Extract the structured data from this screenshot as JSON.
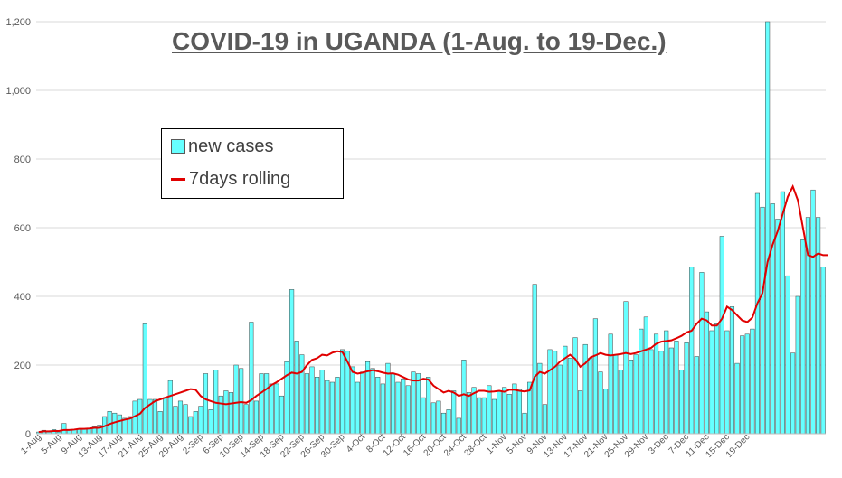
{
  "chart_data": {
    "type": "bar",
    "title": "COVID-19 in UGANDA (1-Aug. to 19-Dec.)",
    "ylim": [
      0,
      1200
    ],
    "yticks": [
      "0",
      "200",
      "400",
      "600",
      "800",
      "1,000",
      "1,200"
    ],
    "ytick_values": [
      0,
      200,
      400,
      600,
      800,
      1000,
      1200
    ],
    "xtick_labels": [
      "1-Aug",
      "5-Aug",
      "9-Aug",
      "13-Aug",
      "17-Aug",
      "21-Aug",
      "25-Aug",
      "29-Aug",
      "2-Sep",
      "6-Sep",
      "10-Sep",
      "14-Sep",
      "18-Sep",
      "22-Sep",
      "26-Sep",
      "30-Sep",
      "4-Oct",
      "8-Oct",
      "12-Oct",
      "16-Oct",
      "20-Oct",
      "24-Oct",
      "28-Oct",
      "1-Nov",
      "5-Nov",
      "9-Nov",
      "13-Nov",
      "17-Nov",
      "21-Nov",
      "25-Nov",
      "29-Nov",
      "3-Dec",
      "7-Dec",
      "11-Dec",
      "15-Dec",
      "19-Dec"
    ],
    "grid": true,
    "legend_position": "upper-left",
    "series": [
      {
        "name": "new cases",
        "type": "bar",
        "color": "#66ffff",
        "values": [
          5,
          10,
          5,
          12,
          5,
          30,
          10,
          12,
          15,
          15,
          15,
          20,
          25,
          50,
          65,
          60,
          55,
          45,
          50,
          95,
          100,
          320,
          100,
          100,
          65,
          105,
          155,
          80,
          95,
          85,
          50,
          65,
          80,
          175,
          70,
          185,
          110,
          125,
          120,
          200,
          190,
          85,
          325,
          95,
          175,
          175,
          145,
          145,
          110,
          210,
          420,
          270,
          230,
          175,
          195,
          165,
          185,
          155,
          150,
          165,
          245,
          240,
          195,
          150,
          180,
          210,
          190,
          165,
          145,
          205,
          175,
          150,
          160,
          140,
          180,
          175,
          105,
          165,
          90,
          95,
          60,
          70,
          125,
          45,
          215,
          120,
          135,
          105,
          105,
          140,
          100,
          125,
          135,
          115,
          145,
          130,
          60,
          150,
          435,
          205,
          85,
          245,
          240,
          200,
          255,
          220,
          280,
          125,
          260,
          220,
          335,
          180,
          130,
          290,
          230,
          185,
          385,
          215,
          230,
          305,
          340,
          245,
          290,
          240,
          300,
          250,
          270,
          185,
          265,
          485,
          225,
          470,
          355,
          300,
          320,
          575,
          300,
          370,
          205,
          285,
          290,
          305,
          700,
          660,
          1200,
          670,
          625,
          705,
          460,
          235,
          400,
          565,
          630,
          710,
          630,
          485
        ]
      },
      {
        "name": "7days rolling",
        "type": "line",
        "color": "#e00000",
        "values": [
          5,
          7,
          7,
          8,
          8,
          11,
          11,
          12,
          14,
          14,
          15,
          17,
          17,
          22,
          28,
          33,
          37,
          41,
          44,
          51,
          58,
          75,
          85,
          95,
          100,
          105,
          110,
          115,
          120,
          125,
          130,
          128,
          110,
          100,
          95,
          90,
          88,
          86,
          88,
          90,
          92,
          90,
          98,
          110,
          120,
          130,
          142,
          150,
          160,
          170,
          178,
          175,
          180,
          200,
          215,
          220,
          230,
          228,
          236,
          240,
          238,
          210,
          180,
          175,
          178,
          182,
          185,
          182,
          178,
          175,
          176,
          172,
          165,
          158,
          155,
          155,
          160,
          158,
          140,
          130,
          120,
          125,
          120,
          110,
          115,
          110,
          118,
          125,
          125,
          122,
          123,
          125,
          122,
          128,
          128,
          125,
          123,
          126,
          166,
          180,
          175,
          185,
          195,
          210,
          220,
          230,
          218,
          195,
          205,
          222,
          228,
          235,
          230,
          228,
          230,
          232,
          235,
          232,
          235,
          240,
          245,
          250,
          262,
          268,
          270,
          272,
          278,
          285,
          295,
          300,
          320,
          335,
          330,
          315,
          315,
          335,
          370,
          360,
          345,
          330,
          325,
          338,
          380,
          410,
          500,
          550,
          590,
          640,
          690,
          720,
          680,
          600,
          520,
          515,
          525,
          520,
          520
        ]
      }
    ]
  }
}
